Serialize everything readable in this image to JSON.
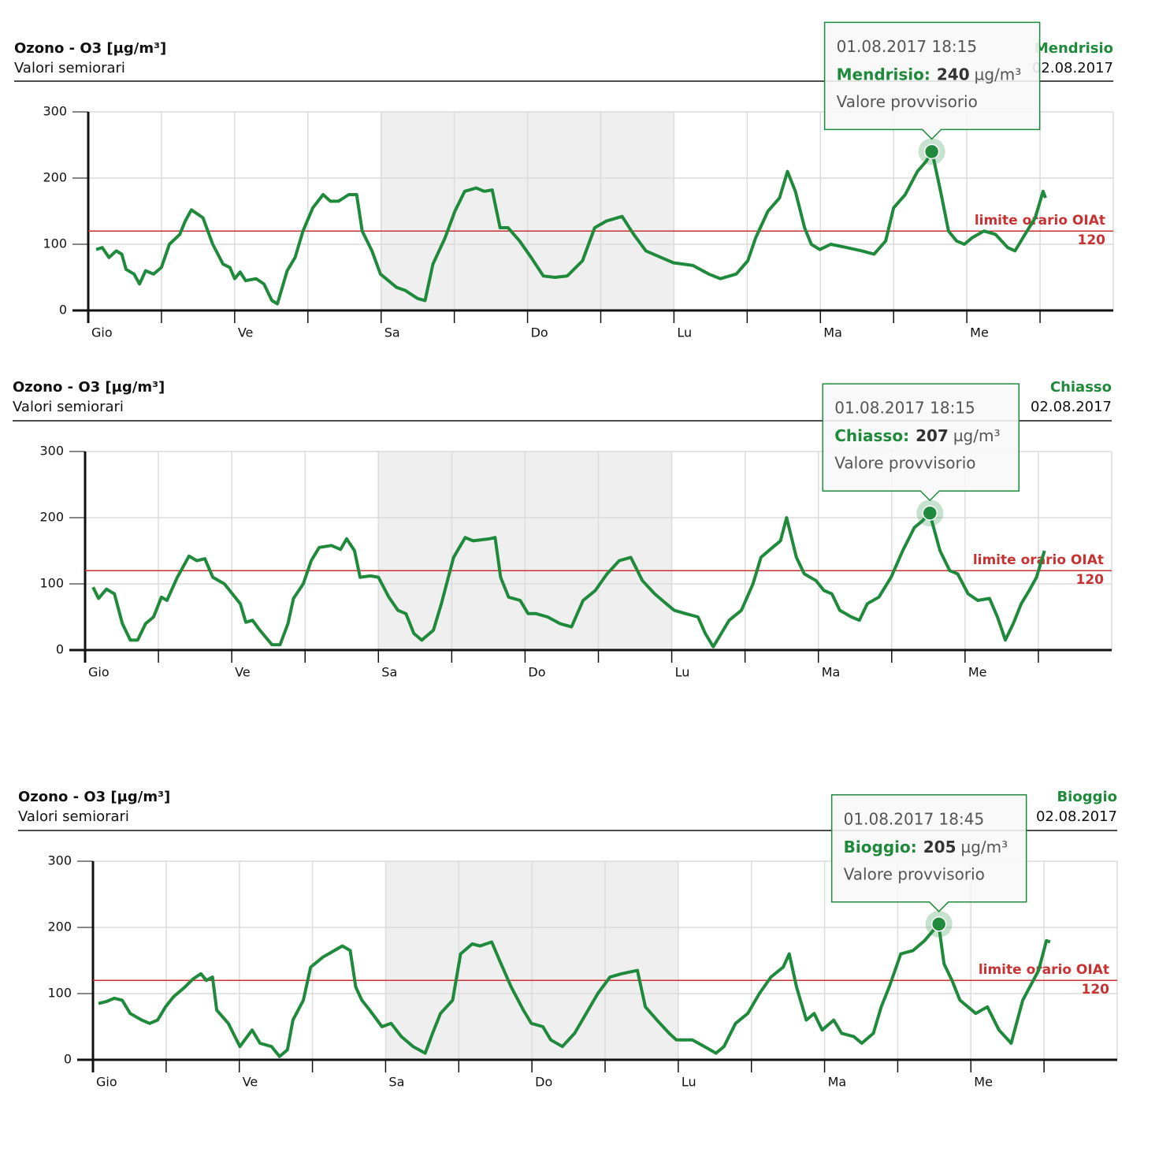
{
  "chart_data": [
    {
      "type": "line",
      "title": "Ozono - O3 [µg/m³]",
      "subtitle": "Valori semiorari",
      "date": "02.08.2017",
      "x": [
        1.3,
        2.3,
        3.4,
        4.6,
        5.5,
        6.2,
        7.5,
        8.4,
        9.4,
        10.7,
        12.0,
        13.3,
        15.0,
        15.9,
        16.9,
        18.8,
        20.4,
        22.1,
        23.2,
        24.0,
        24.9,
        25.8,
        27.5,
        28.8,
        30.1,
        31.0,
        32.6,
        33.9,
        35.2,
        36.8,
        38.5,
        39.7,
        41.0,
        42.7,
        44.0,
        44.9,
        46.5,
        47.9,
        49.2,
        50.5,
        52.0,
        54.0,
        55.2,
        56.5,
        58.5,
        60.1,
        61.7,
        63.6,
        64.9,
        66.2,
        67.5,
        68.8,
        70.7,
        72.6,
        74.6,
        76.5,
        78.5,
        81.0,
        83.0,
        84.9,
        87.5,
        89.4,
        91.4,
        93.9,
        95.9,
        99.1,
        101.7,
        103.6,
        106.2,
        108.1,
        109.4,
        111.4,
        113.3,
        114.6,
        115.9,
        117.4,
        118.5,
        119.9,
        121.7,
        124.3,
        126.8,
        128.8,
        130.7,
        132.0,
        133.9,
        135.9,
        137.3,
        138.3,
        139.7,
        141.0,
        142.3,
        143.6,
        144.9,
        146.8,
        148.7,
        150.7,
        151.9,
        153.2,
        155.2,
        156.5,
        156.9
      ],
      "series": [
        {
          "name": "Mendrisio",
          "color": "#1f8a3b",
          "values": [
            92,
            95,
            80,
            90,
            85,
            62,
            55,
            40,
            60,
            55,
            65,
            100,
            115,
            135,
            152,
            140,
            100,
            70,
            65,
            48,
            58,
            45,
            48,
            40,
            15,
            10,
            60,
            80,
            120,
            155,
            175,
            165,
            165,
            175,
            175,
            120,
            90,
            55,
            45,
            35,
            30,
            18,
            15,
            70,
            110,
            150,
            180,
            185,
            180,
            182,
            125,
            125,
            105,
            80,
            52,
            50,
            52,
            75,
            125,
            135,
            142,
            115,
            90,
            80,
            72,
            68,
            55,
            48,
            55,
            75,
            110,
            150,
            170,
            210,
            180,
            125,
            100,
            92,
            100,
            95,
            90,
            85,
            105,
            155,
            175,
            210,
            225,
            240,
            180,
            120,
            105,
            100,
            110,
            120,
            115,
            95,
            90,
            110,
            140,
            180,
            170
          ]
        }
      ],
      "xlim": [
        0,
        168
      ],
      "xticks": [
        {
          "value": 0,
          "label": "Gio"
        },
        {
          "value": 24,
          "label": "Ve"
        },
        {
          "value": 48,
          "label": "Sa"
        },
        {
          "value": 72,
          "label": "Do"
        },
        {
          "value": 96,
          "label": "Lu"
        },
        {
          "value": 120,
          "label": "Ma"
        },
        {
          "value": 144,
          "label": "Me"
        }
      ],
      "xminorticks": [
        12,
        36,
        60,
        84,
        108,
        132,
        156
      ],
      "ylim": [
        0,
        300
      ],
      "yticks": [
        0,
        100,
        200,
        300
      ],
      "grid": true,
      "bands": [
        {
          "from": 48,
          "to": 96,
          "color": "#efefef"
        }
      ],
      "hline": {
        "value": 120,
        "label": "limite orario OIAt",
        "color": "#c83232"
      },
      "tooltip": {
        "x": 138.25,
        "value": 240,
        "date": "01.08.2017 18:15",
        "label": "Mendrisio:",
        "unit": "µg/m³",
        "note": "Valore provvisorio"
      }
    },
    {
      "type": "line",
      "title": "Ozono - O3 [µg/m³]",
      "subtitle": "Valori semiorari",
      "date": "02.08.2017",
      "x": [
        1.3,
        2.2,
        3.5,
        4.8,
        6.1,
        7.4,
        8.6,
        9.9,
        11.2,
        12.5,
        13.4,
        15.1,
        17.0,
        18.3,
        19.6,
        20.9,
        22.8,
        24.1,
        25.4,
        26.3,
        27.4,
        28.6,
        30.6,
        31.9,
        33.2,
        34.1,
        35.7,
        37.0,
        38.3,
        40.3,
        41.8,
        42.8,
        44.1,
        45.0,
        46.7,
        48.0,
        49.7,
        51.2,
        52.5,
        53.8,
        55.1,
        57.0,
        58.3,
        60.3,
        62.2,
        63.5,
        66.1,
        67.1,
        68.0,
        69.3,
        71.2,
        72.5,
        73.8,
        75.7,
        77.7,
        79.6,
        81.5,
        83.5,
        85.4,
        87.4,
        89.3,
        91.2,
        93.2,
        95.1,
        96.4,
        98.3,
        100.3,
        101.5,
        102.8,
        104.1,
        105.4,
        107.4,
        109.3,
        110.6,
        112.5,
        113.8,
        114.8,
        116.4,
        117.7,
        119.6,
        120.9,
        122.2,
        123.5,
        125.4,
        126.7,
        128.0,
        129.9,
        131.9,
        133.8,
        135.7,
        137.0,
        138.2,
        139.9,
        141.5,
        142.8,
        144.5,
        146.1,
        148.0,
        149.3,
        150.6,
        151.9,
        153.2,
        154.5,
        155.7,
        157.0
      ],
      "series": [
        {
          "name": "Chiasso",
          "color": "#1f8a3b",
          "values": [
            95,
            78,
            92,
            85,
            40,
            15,
            15,
            40,
            50,
            80,
            75,
            110,
            142,
            135,
            138,
            110,
            100,
            85,
            70,
            42,
            45,
            30,
            8,
            8,
            40,
            78,
            100,
            135,
            155,
            158,
            152,
            168,
            150,
            110,
            112,
            110,
            80,
            60,
            55,
            25,
            15,
            30,
            70,
            140,
            170,
            165,
            168,
            170,
            110,
            80,
            75,
            55,
            55,
            50,
            40,
            35,
            75,
            90,
            115,
            135,
            140,
            105,
            85,
            70,
            60,
            55,
            50,
            25,
            5,
            25,
            45,
            60,
            100,
            140,
            155,
            165,
            200,
            140,
            115,
            105,
            90,
            85,
            60,
            50,
            45,
            70,
            80,
            110,
            150,
            185,
            195,
            207,
            150,
            120,
            115,
            85,
            75,
            78,
            50,
            15,
            40,
            70,
            90,
            110,
            150
          ]
        }
      ],
      "xlim": [
        0,
        168
      ],
      "xticks": [
        {
          "value": 0,
          "label": "Gio"
        },
        {
          "value": 24,
          "label": "Ve"
        },
        {
          "value": 48,
          "label": "Sa"
        },
        {
          "value": 72,
          "label": "Do"
        },
        {
          "value": 96,
          "label": "Lu"
        },
        {
          "value": 120,
          "label": "Ma"
        },
        {
          "value": 144,
          "label": "Me"
        }
      ],
      "xminorticks": [
        12,
        36,
        60,
        84,
        108,
        132,
        156
      ],
      "ylim": [
        0,
        300
      ],
      "yticks": [
        0,
        100,
        200,
        300
      ],
      "grid": true,
      "bands": [
        {
          "from": 48,
          "to": 96,
          "color": "#efefef"
        }
      ],
      "hline": {
        "value": 120,
        "label": "limite orario OIAt",
        "color": "#c83232"
      },
      "tooltip": {
        "x": 138.25,
        "value": 207,
        "date": "01.08.2017 18:15",
        "label": "Chiasso:",
        "unit": "µg/m³",
        "note": "Valore provvisorio"
      }
    },
    {
      "type": "line",
      "title": "Ozono - O3 [µg/m³]",
      "subtitle": "Valori semiorari",
      "date": "02.08.2017",
      "x": [
        0.9,
        2.2,
        3.5,
        4.8,
        6.1,
        8.0,
        9.3,
        10.6,
        11.9,
        13.2,
        15.1,
        16.4,
        17.7,
        18.6,
        19.6,
        20.3,
        22.2,
        24.1,
        26.1,
        27.4,
        29.3,
        30.6,
        31.9,
        32.8,
        34.5,
        35.7,
        37.7,
        39.6,
        40.9,
        42.2,
        43.1,
        44.1,
        45.4,
        47.4,
        48.9,
        50.6,
        52.5,
        54.5,
        55.7,
        57.0,
        59.0,
        60.3,
        62.2,
        63.5,
        65.4,
        66.7,
        68.6,
        70.6,
        71.9,
        73.8,
        75.1,
        77.0,
        79.0,
        80.9,
        82.8,
        84.8,
        86.7,
        89.3,
        90.6,
        92.5,
        94.5,
        95.7,
        98.3,
        100.3,
        102.2,
        103.5,
        105.4,
        107.4,
        109.3,
        111.2,
        113.2,
        114.2,
        115.4,
        117.0,
        118.3,
        119.6,
        121.5,
        122.8,
        124.8,
        126.1,
        128.0,
        129.3,
        130.6,
        132.5,
        134.5,
        136.4,
        138.7,
        139.6,
        140.9,
        142.2,
        144.8,
        146.7,
        148.6,
        150.6,
        152.5,
        155.1,
        156.4,
        157.0
      ],
      "series": [
        {
          "name": "Bioggio",
          "color": "#1f8a3b",
          "values": [
            85,
            88,
            93,
            90,
            70,
            60,
            55,
            60,
            80,
            95,
            110,
            122,
            130,
            120,
            125,
            75,
            55,
            20,
            45,
            25,
            20,
            5,
            15,
            60,
            90,
            140,
            155,
            165,
            172,
            165,
            110,
            90,
            75,
            50,
            55,
            35,
            20,
            10,
            40,
            70,
            90,
            160,
            175,
            172,
            178,
            150,
            110,
            75,
            55,
            50,
            30,
            20,
            40,
            70,
            100,
            125,
            130,
            135,
            80,
            60,
            40,
            30,
            30,
            20,
            10,
            20,
            55,
            70,
            100,
            125,
            140,
            160,
            110,
            60,
            70,
            45,
            60,
            40,
            35,
            25,
            40,
            80,
            110,
            160,
            165,
            180,
            205,
            145,
            120,
            90,
            70,
            80,
            45,
            25,
            90,
            135,
            180,
            178
          ]
        }
      ],
      "xlim": [
        0,
        168
      ],
      "xticks": [
        {
          "value": 0,
          "label": "Gio"
        },
        {
          "value": 24,
          "label": "Ve"
        },
        {
          "value": 48,
          "label": "Sa"
        },
        {
          "value": 72,
          "label": "Do"
        },
        {
          "value": 96,
          "label": "Lu"
        },
        {
          "value": 120,
          "label": "Ma"
        },
        {
          "value": 144,
          "label": "Me"
        }
      ],
      "xminorticks": [
        12,
        36,
        60,
        84,
        108,
        132,
        156
      ],
      "ylim": [
        0,
        300
      ],
      "yticks": [
        0,
        100,
        200,
        300
      ],
      "grid": true,
      "bands": [
        {
          "from": 48,
          "to": 96,
          "color": "#efefef"
        }
      ],
      "hline": {
        "value": 120,
        "label": "limite orario OIAt",
        "color": "#c83232"
      },
      "tooltip": {
        "x": 138.75,
        "value": 205,
        "date": "01.08.2017 18:45",
        "label": "Bioggio:",
        "unit": "µg/m³",
        "note": "Valore provvisorio"
      }
    }
  ]
}
